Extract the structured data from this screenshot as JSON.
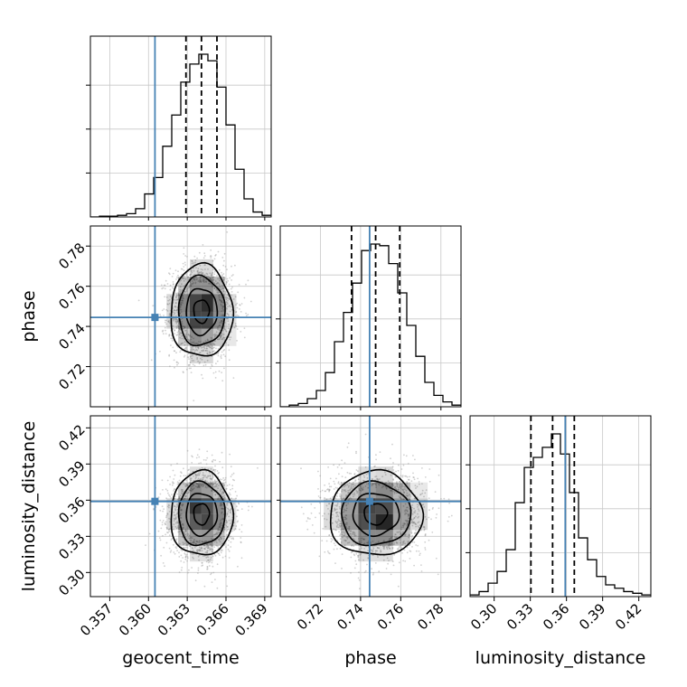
{
  "chart_data": {
    "type": "corner",
    "title": "",
    "parameters": [
      {
        "name": "geocent_time",
        "label": "geocent_time",
        "range": [
          0.3555,
          0.3695
        ],
        "ticks": [
          0.357,
          0.36,
          0.363,
          0.366,
          0.369
        ],
        "tick_labels": [
          "0.357",
          "0.360",
          "0.363",
          "0.366",
          "0.369"
        ],
        "truth": 0.3605,
        "quantiles": [
          0.3629,
          0.3641,
          0.3653
        ],
        "mean": 0.3641,
        "sd": 0.0012,
        "hist_bin_edges": [
          0.3555,
          0.3562,
          0.3569,
          0.3576,
          0.3583,
          0.359,
          0.3597,
          0.3604,
          0.3611,
          0.3618,
          0.3625,
          0.3632,
          0.3639,
          0.3646,
          0.3653,
          0.366,
          0.3667,
          0.3674,
          0.3681,
          0.3688,
          0.3695
        ],
        "hist_heights": [
          0.0,
          0.005,
          0.005,
          0.01,
          0.02,
          0.05,
          0.14,
          0.24,
          0.43,
          0.62,
          0.82,
          0.93,
          0.99,
          0.95,
          0.79,
          0.56,
          0.29,
          0.11,
          0.03,
          0.01
        ],
        "hist_grid": [
          0.27,
          0.54,
          0.81
        ]
      },
      {
        "name": "phase",
        "label": "phase",
        "range": [
          0.7,
          0.79
        ],
        "ticks": [
          0.72,
          0.74,
          0.76,
          0.78
        ],
        "tick_labels": [
          "0.72",
          "0.74",
          "0.76",
          "0.78"
        ],
        "truth": 0.7445,
        "quantiles": [
          0.7355,
          0.7475,
          0.7595
        ],
        "mean": 0.7475,
        "sd": 0.0115,
        "hist_bin_edges": [
          0.7,
          0.7045,
          0.709,
          0.7135,
          0.718,
          0.7225,
          0.727,
          0.7315,
          0.736,
          0.7405,
          0.745,
          0.7495,
          0.754,
          0.7585,
          0.763,
          0.7675,
          0.772,
          0.7765,
          0.781,
          0.7855,
          0.79
        ],
        "hist_heights": [
          0.0,
          0.01,
          0.02,
          0.05,
          0.1,
          0.21,
          0.4,
          0.58,
          0.76,
          0.96,
          1.0,
          0.99,
          0.88,
          0.7,
          0.5,
          0.31,
          0.15,
          0.07,
          0.03,
          0.01
        ],
        "hist_grid": [
          0.27,
          0.54,
          0.81
        ]
      },
      {
        "name": "luminosity_distance",
        "label": "luminosity_distance",
        "range": [
          0.28,
          0.43
        ],
        "ticks": [
          0.3,
          0.33,
          0.36,
          0.39,
          0.42
        ],
        "tick_labels": [
          "0.30",
          "0.33",
          "0.36",
          "0.39",
          "0.42"
        ],
        "truth": 0.359,
        "quantiles": [
          0.3305,
          0.3485,
          0.3665
        ],
        "mean": 0.3485,
        "sd": 0.0175,
        "hist_bin_edges": [
          0.28,
          0.2875,
          0.295,
          0.3025,
          0.31,
          0.3175,
          0.325,
          0.3325,
          0.34,
          0.3475,
          0.355,
          0.3625,
          0.37,
          0.3775,
          0.385,
          0.3925,
          0.4,
          0.4075,
          0.415,
          0.4225,
          0.43
        ],
        "hist_heights": [
          0.01,
          0.03,
          0.08,
          0.15,
          0.28,
          0.56,
          0.77,
          0.83,
          0.89,
          0.97,
          0.85,
          0.62,
          0.35,
          0.22,
          0.12,
          0.07,
          0.05,
          0.03,
          0.02,
          0.01
        ],
        "hist_grid": [
          0.27,
          0.54,
          0.81
        ]
      }
    ],
    "pairs": [
      {
        "x": "geocent_time",
        "y": "phase",
        "correlation": 0.0
      },
      {
        "x": "geocent_time",
        "y": "luminosity_distance",
        "correlation": 0.0
      },
      {
        "x": "phase",
        "y": "luminosity_distance",
        "correlation": 0.0
      }
    ],
    "contour_levels_sigma": [
      0.5,
      1.0,
      1.5,
      2.0
    ],
    "grid": true,
    "colors": {
      "truth": "#4682b4",
      "histogram": "#000000",
      "quantile": "#000000",
      "contour": "#000000",
      "scatter": "#9a9a9a",
      "grid": "#c8c8c8",
      "density": "#000000"
    }
  }
}
